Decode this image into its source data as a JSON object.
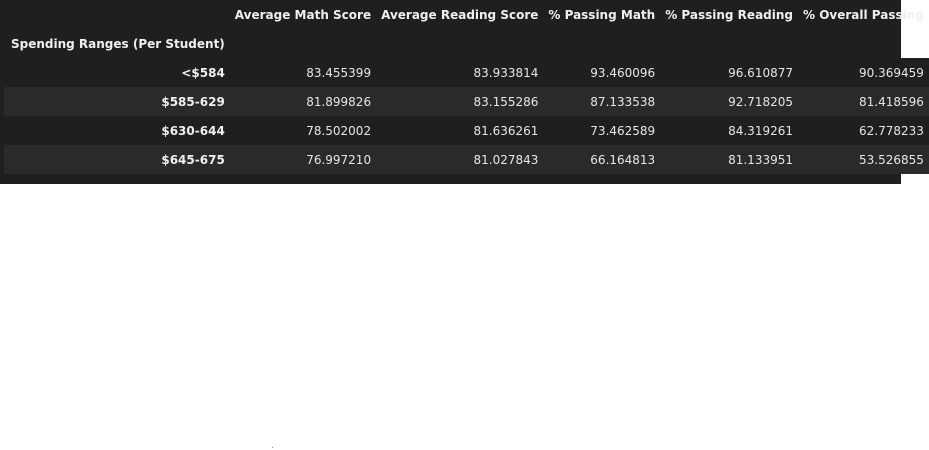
{
  "table": {
    "columns": [
      "",
      "Average Math Score",
      "Average Reading Score",
      "% Passing Math",
      "% Passing Reading",
      "% Overall Passing"
    ],
    "index_name": "Spending Ranges (Per Student)",
    "rows": [
      {
        "index": "<$584",
        "values": [
          "83.455399",
          "83.933814",
          "93.460096",
          "96.610877",
          "90.369459"
        ]
      },
      {
        "index": "$585-629",
        "values": [
          "81.899826",
          "83.155286",
          "87.133538",
          "92.718205",
          "81.418596"
        ]
      },
      {
        "index": "$630-644",
        "values": [
          "78.502002",
          "81.636261",
          "73.462589",
          "84.319261",
          "62.778233"
        ]
      },
      {
        "index": "$645-675",
        "values": [
          "76.997210",
          "81.027843",
          "66.164813",
          "81.133951",
          "53.526855"
        ]
      }
    ]
  },
  "colors": {
    "background": "#1f1f1f",
    "row_stripe": "#2a2a2a",
    "text": "#e8e8e8"
  }
}
